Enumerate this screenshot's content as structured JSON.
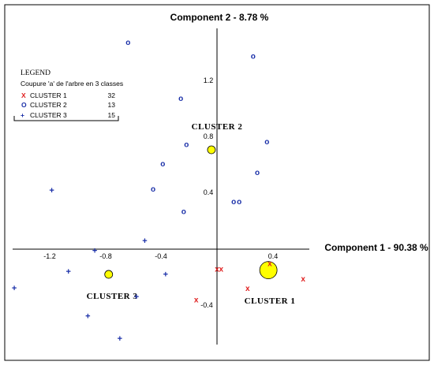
{
  "chart_data": {
    "type": "scatter",
    "xlabel": "Component 1  -  90.38 %",
    "ylabel": "Component 2  -  8.78 %",
    "xlim": [
      -1.5,
      0.65
    ],
    "ylim": [
      -0.65,
      1.5
    ],
    "x_ticks": [
      "-1.2",
      "-0.8",
      "-0.4",
      "0.4"
    ],
    "y_ticks": [
      "1.2",
      "0.8",
      "0.4",
      "-0.4"
    ],
    "legend": {
      "title": "LEGEND",
      "subtitle": "Coupure 'a' de l'arbre en  3 classes",
      "placement": "top-left",
      "entries": [
        {
          "symbol": "X",
          "label": "CLUSTER 1",
          "count": "32",
          "color": "#e02020"
        },
        {
          "symbol": "O",
          "label": "CLUSTER 2",
          "count": "13",
          "color": "#1a2fa8"
        },
        {
          "symbol": "+",
          "label": "CLUSTER 3",
          "count": "15",
          "color": "#1a2fa8"
        }
      ]
    },
    "series": [
      {
        "name": "CLUSTER 1",
        "symbol": "X",
        "color": "#e02020",
        "points": [
          [
            0.0,
            -0.14
          ],
          [
            0.03,
            -0.14
          ],
          [
            0.22,
            -0.28
          ],
          [
            0.38,
            -0.1
          ],
          [
            0.62,
            -0.21
          ],
          [
            -0.15,
            -0.36
          ]
        ]
      },
      {
        "name": "CLUSTER 2",
        "symbol": "O",
        "color": "#1a2fa8",
        "points": [
          [
            -0.64,
            1.48
          ],
          [
            0.26,
            1.38
          ],
          [
            -0.26,
            1.08
          ],
          [
            0.36,
            0.77
          ],
          [
            -0.22,
            0.75
          ],
          [
            -0.39,
            0.61
          ],
          [
            0.29,
            0.55
          ],
          [
            -0.46,
            0.43
          ],
          [
            0.16,
            0.34
          ],
          [
            0.12,
            0.34
          ],
          [
            -0.24,
            0.27
          ]
        ]
      },
      {
        "name": "CLUSTER 3",
        "symbol": "+",
        "color": "#1a2fa8",
        "points": [
          [
            -1.19,
            0.42
          ],
          [
            -0.52,
            0.06
          ],
          [
            -0.88,
            -0.01
          ],
          [
            -1.07,
            -0.16
          ],
          [
            -0.37,
            -0.18
          ],
          [
            -1.46,
            -0.28
          ],
          [
            -0.58,
            -0.34
          ],
          [
            -0.93,
            -0.48
          ],
          [
            -0.7,
            -0.64
          ]
        ]
      }
    ],
    "centroids": [
      {
        "name": "CLUSTER 1",
        "x": 0.37,
        "y": -0.15,
        "size": "large",
        "color": "#ffff00"
      },
      {
        "name": "CLUSTER 2",
        "x": -0.04,
        "y": 0.71,
        "size": "small",
        "color": "#ffff00"
      },
      {
        "name": "CLUSTER 3",
        "x": -0.78,
        "y": -0.18,
        "size": "small",
        "color": "#ffff00"
      }
    ],
    "cluster_labels": [
      "CLUSTER 1",
      "CLUSTER 2",
      "CLUSTER 3"
    ]
  }
}
